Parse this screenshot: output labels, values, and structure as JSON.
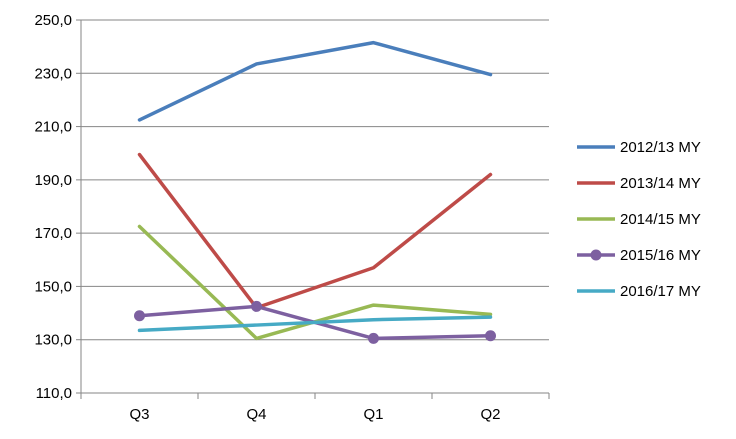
{
  "chart_data": {
    "type": "line",
    "categories": [
      "Q3",
      "Q4",
      "Q1",
      "Q2"
    ],
    "ylim": [
      110,
      250
    ],
    "yticks": [
      "110,0",
      "130,0",
      "150,0",
      "170,0",
      "190,0",
      "210,0",
      "230,0",
      "250,0"
    ],
    "ytick_values": [
      110,
      130,
      150,
      170,
      190,
      210,
      230,
      250
    ],
    "grid": true,
    "legend_position": "right",
    "series": [
      {
        "name": "2012/13 MY",
        "color": "#4a7ebb",
        "markers": false,
        "values": [
          212.5,
          233.5,
          241.5,
          229.5
        ]
      },
      {
        "name": "2013/14 MY",
        "color": "#be4b48",
        "markers": false,
        "values": [
          199.5,
          142.0,
          157.0,
          192.0
        ]
      },
      {
        "name": "2014/15 MY",
        "color": "#98b954",
        "markers": false,
        "values": [
          172.5,
          130.5,
          143.0,
          139.5
        ]
      },
      {
        "name": "2015/16 MY",
        "color": "#7d60a0",
        "markers": true,
        "values": [
          139.0,
          142.5,
          130.5,
          131.5
        ]
      },
      {
        "name": "2016/17 MY",
        "color": "#46aac5",
        "markers": false,
        "values": [
          133.5,
          135.5,
          137.5,
          138.5
        ]
      }
    ]
  }
}
